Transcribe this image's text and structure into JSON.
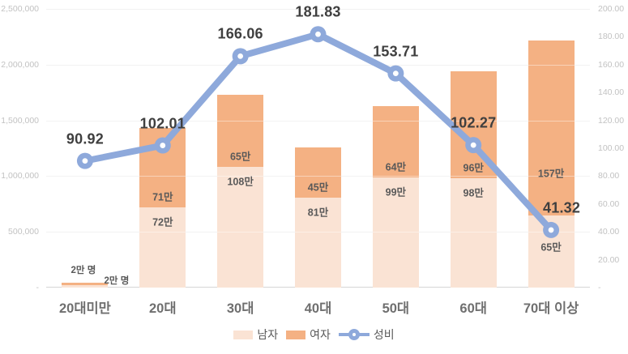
{
  "chart_data": {
    "type": "bar",
    "subtype": "stacked-column-with-line",
    "categories": [
      "20대미만",
      "20대",
      "30대",
      "40대",
      "50대",
      "60대",
      "70대 이상"
    ],
    "series": [
      {
        "name": "남자",
        "type": "bar",
        "stack": true,
        "axis": "left",
        "color": "#FAE3D4",
        "values": [
          20000,
          720000,
          1080000,
          810000,
          990000,
          980000,
          650000
        ],
        "data_labels": [
          "2만 명",
          "72만",
          "108만",
          "81만",
          "99만",
          "98만",
          "65만"
        ]
      },
      {
        "name": "여자",
        "type": "bar",
        "stack": true,
        "axis": "left",
        "color": "#F4B183",
        "values": [
          20000,
          710000,
          650000,
          450000,
          640000,
          960000,
          1570000
        ],
        "data_labels": [
          "2만 명",
          "71만",
          "65만",
          "45만",
          "64만",
          "96만",
          "157만"
        ]
      },
      {
        "name": "성비",
        "type": "line",
        "axis": "right",
        "color": "#8EA9DB",
        "values": [
          90.92,
          102.01,
          166.06,
          181.83,
          153.71,
          102.27,
          41.32
        ],
        "data_labels": [
          "90.92",
          "102.01",
          "166.06",
          "181.83",
          "153.71",
          "102.27",
          "41.32"
        ]
      }
    ],
    "left_axis": {
      "min": 0,
      "max": 2500000,
      "ticks": [
        "-",
        "500,000",
        "1,000,000",
        "1,500,000",
        "2,000,000",
        "2,500,000"
      ]
    },
    "right_axis": {
      "min": 0,
      "max": 200,
      "ticks": [
        "-",
        "20.00",
        "40.00",
        "60.00",
        "80.00",
        "100.00",
        "120.00",
        "140.00",
        "160.00",
        "180.00",
        "200.00"
      ]
    },
    "legend": [
      "남자",
      "여자",
      "성비"
    ],
    "grid": {
      "horizontal_lines": true,
      "interval_left_axis": 500000,
      "vertical_lines": false
    },
    "legend_position": "bottom"
  },
  "colors": {
    "male_bar": "#FAE3D4",
    "female_bar": "#F4B183",
    "ratio_line": "#8EA9DB",
    "ratio_label": "#3F3F3F",
    "bar_label": "#595959",
    "axis_tick_label": "#C2C2C2",
    "category_label": "#6F6F6F",
    "gridline": "#E8E8E8",
    "axis_line": "#D6D6D6",
    "background": "#FFFFFF"
  }
}
